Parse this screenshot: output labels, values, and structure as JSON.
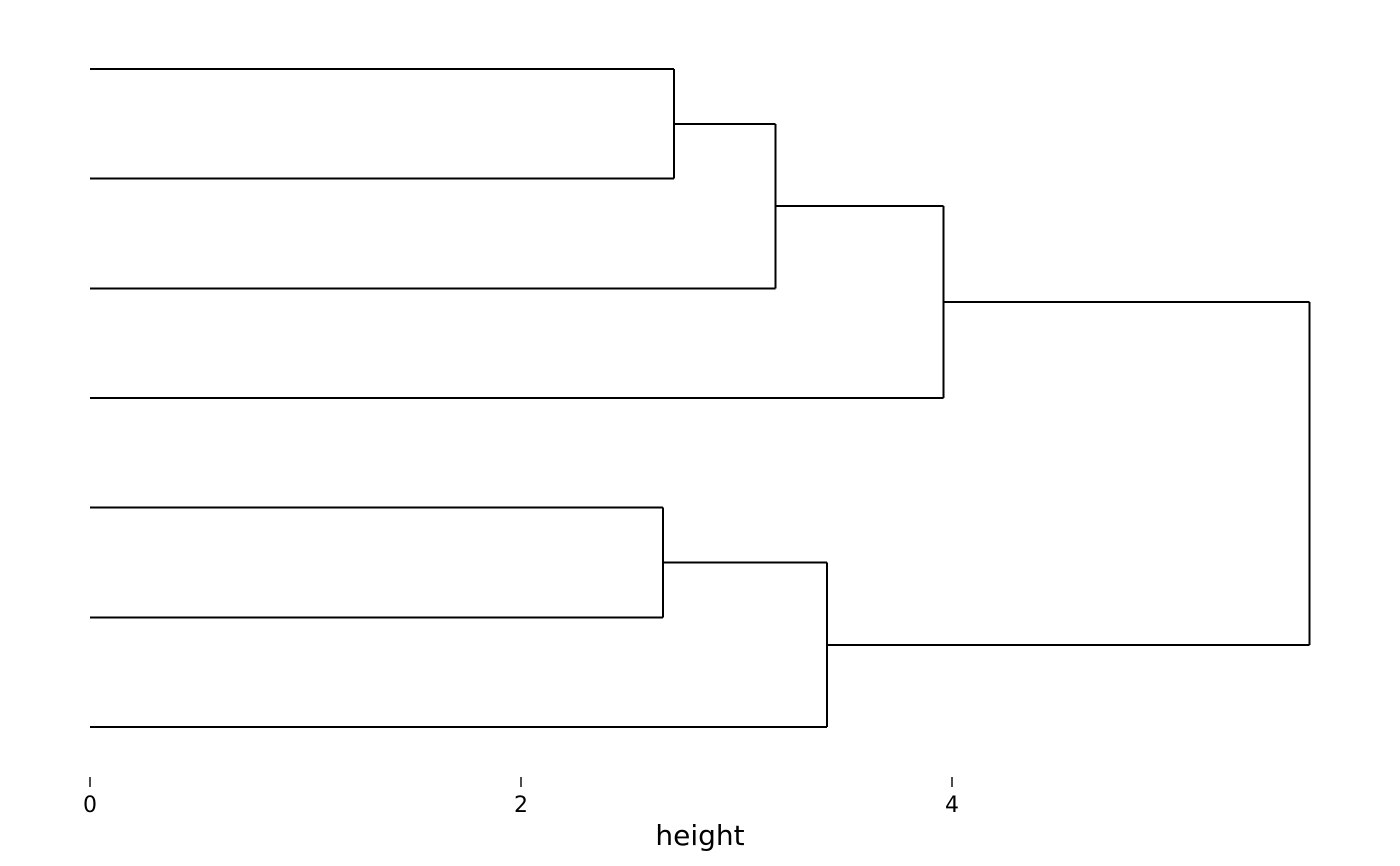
{
  "chart_data": {
    "type": "dendrogram",
    "orientation": "horizontal-root-right",
    "title": "",
    "xlabel": "height",
    "x_ticks": [
      0,
      2,
      4
    ],
    "xlim": [
      0,
      6.08
    ],
    "grid": false,
    "legend": false,
    "leaf_count": 7,
    "leaf_ids": [
      "L1",
      "L2",
      "L3",
      "L4",
      "L5",
      "L6",
      "L7"
    ],
    "leaf_labels_visible": false,
    "leaf_height": 0,
    "merges": [
      {
        "id": "M1",
        "children": [
          "L1",
          "L2"
        ],
        "height": 2.71
      },
      {
        "id": "M2",
        "children": [
          "M1",
          "L3"
        ],
        "height": 3.18
      },
      {
        "id": "M3",
        "children": [
          "M2",
          "L4"
        ],
        "height": 3.96
      },
      {
        "id": "M4",
        "children": [
          "L5",
          "L6"
        ],
        "height": 2.66
      },
      {
        "id": "M5",
        "children": [
          "M4",
          "L7"
        ],
        "height": 3.42
      },
      {
        "id": "M6",
        "children": [
          "M3",
          "M5"
        ],
        "height": 5.66
      }
    ],
    "line_color": "#000000",
    "tick_color": "#4d4d4d",
    "text_color": "#000000",
    "background": "#ffffff"
  }
}
